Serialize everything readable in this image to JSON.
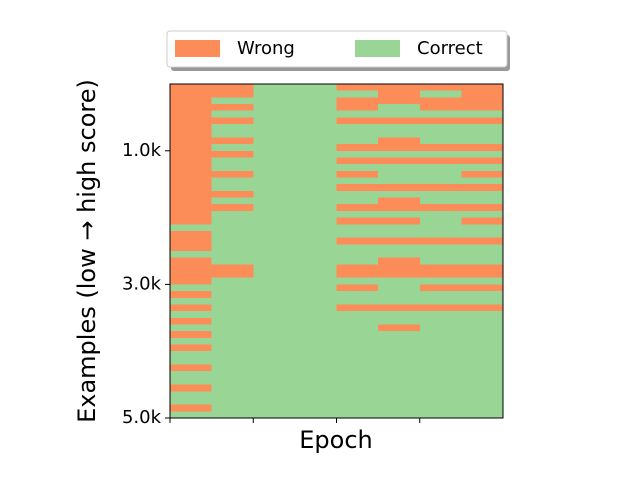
{
  "chart_data": {
    "type": "heatmap",
    "x_label": "Epoch",
    "y_label": "Examples (low → high score)",
    "xlim": [
      0,
      4
    ],
    "xticks": [
      0,
      1,
      2,
      3
    ],
    "ylim": [
      0,
      5000
    ],
    "yticks": [
      {
        "value": 1000,
        "label": "1.0k"
      },
      {
        "value": 3000,
        "label": "3.0k"
      },
      {
        "value": 5000,
        "label": "5.0k"
      }
    ],
    "classes": [
      {
        "value": 1,
        "name": "Wrong",
        "color": "#fc8d59"
      },
      {
        "value": 0,
        "name": "Correct",
        "color": "#99d594"
      }
    ],
    "xbins": [
      0,
      0.5,
      1,
      1.5,
      2,
      2.5,
      3,
      3.5,
      4
    ],
    "ybins": [
      0,
      100,
      200,
      300,
      400,
      500,
      600,
      700,
      800,
      900,
      1000,
      1100,
      1200,
      1300,
      1400,
      1500,
      1600,
      1700,
      1800,
      1900,
      2000,
      2100,
      2200,
      2300,
      2400,
      2500,
      2600,
      2700,
      2800,
      2900,
      3000,
      3100,
      3200,
      3300,
      3400,
      3500,
      3600,
      3700,
      3800,
      3900,
      4000,
      4100,
      4200,
      4300,
      4400,
      4500,
      4600,
      4700,
      4800,
      4900,
      5000
    ],
    "values": [
      [
        1,
        1,
        0,
        0,
        1,
        1,
        1,
        1
      ],
      [
        1,
        1,
        0,
        0,
        0,
        1,
        0,
        1
      ],
      [
        1,
        0,
        0,
        0,
        1,
        1,
        1,
        1
      ],
      [
        1,
        1,
        0,
        0,
        1,
        0,
        1,
        1
      ],
      [
        1,
        0,
        0,
        0,
        0,
        0,
        0,
        0
      ],
      [
        1,
        1,
        0,
        0,
        1,
        1,
        1,
        1
      ],
      [
        1,
        0,
        0,
        0,
        0,
        0,
        0,
        0
      ],
      [
        1,
        0,
        0,
        0,
        0,
        0,
        0,
        0
      ],
      [
        1,
        1,
        0,
        0,
        0,
        1,
        0,
        0
      ],
      [
        1,
        0,
        0,
        0,
        1,
        1,
        1,
        1
      ],
      [
        1,
        1,
        0,
        0,
        0,
        0,
        0,
        0
      ],
      [
        1,
        0,
        0,
        0,
        1,
        1,
        1,
        1
      ],
      [
        1,
        0,
        0,
        0,
        0,
        0,
        0,
        0
      ],
      [
        1,
        1,
        0,
        0,
        1,
        0,
        0,
        1
      ],
      [
        1,
        0,
        0,
        0,
        0,
        0,
        0,
        0
      ],
      [
        1,
        0,
        0,
        0,
        1,
        1,
        1,
        1
      ],
      [
        1,
        1,
        0,
        0,
        0,
        0,
        0,
        0
      ],
      [
        1,
        0,
        0,
        0,
        0,
        1,
        0,
        0
      ],
      [
        1,
        1,
        0,
        0,
        1,
        1,
        1,
        1
      ],
      [
        1,
        0,
        0,
        0,
        0,
        0,
        0,
        0
      ],
      [
        1,
        0,
        0,
        0,
        1,
        1,
        0,
        1
      ],
      [
        0,
        0,
        0,
        0,
        0,
        0,
        0,
        0
      ],
      [
        1,
        0,
        0,
        0,
        0,
        0,
        0,
        0
      ],
      [
        1,
        0,
        0,
        0,
        1,
        1,
        1,
        1
      ],
      [
        1,
        0,
        0,
        0,
        0,
        0,
        0,
        0
      ],
      [
        0,
        0,
        0,
        0,
        0,
        0,
        0,
        0
      ],
      [
        1,
        0,
        0,
        0,
        0,
        1,
        0,
        0
      ],
      [
        1,
        1,
        0,
        0,
        1,
        1,
        1,
        1
      ],
      [
        1,
        1,
        0,
        0,
        1,
        1,
        1,
        1
      ],
      [
        1,
        0,
        0,
        0,
        0,
        0,
        0,
        0
      ],
      [
        0,
        0,
        0,
        0,
        1,
        0,
        1,
        1
      ],
      [
        1,
        0,
        0,
        0,
        0,
        0,
        0,
        0
      ],
      [
        0,
        0,
        0,
        0,
        0,
        0,
        0,
        0
      ],
      [
        1,
        0,
        0,
        0,
        1,
        1,
        1,
        1
      ],
      [
        0,
        0,
        0,
        0,
        0,
        0,
        0,
        0
      ],
      [
        1,
        0,
        0,
        0,
        0,
        0,
        0,
        0
      ],
      [
        0,
        0,
        0,
        0,
        0,
        1,
        0,
        0
      ],
      [
        1,
        0,
        0,
        0,
        0,
        0,
        0,
        0
      ],
      [
        0,
        0,
        0,
        0,
        0,
        0,
        0,
        0
      ],
      [
        1,
        0,
        0,
        0,
        0,
        0,
        0,
        0
      ],
      [
        0,
        0,
        0,
        0,
        0,
        0,
        0,
        0
      ],
      [
        0,
        0,
        0,
        0,
        0,
        0,
        0,
        0
      ],
      [
        1,
        0,
        0,
        0,
        0,
        0,
        0,
        0
      ],
      [
        0,
        0,
        0,
        0,
        0,
        0,
        0,
        0
      ],
      [
        0,
        0,
        0,
        0,
        0,
        0,
        0,
        0
      ],
      [
        1,
        0,
        0,
        0,
        0,
        0,
        0,
        0
      ],
      [
        0,
        0,
        0,
        0,
        0,
        0,
        0,
        0
      ],
      [
        0,
        0,
        0,
        0,
        0,
        0,
        0,
        0
      ],
      [
        1,
        0,
        0,
        0,
        0,
        0,
        0,
        0
      ],
      [
        0,
        0,
        0,
        0,
        0,
        0,
        0,
        0
      ]
    ]
  }
}
